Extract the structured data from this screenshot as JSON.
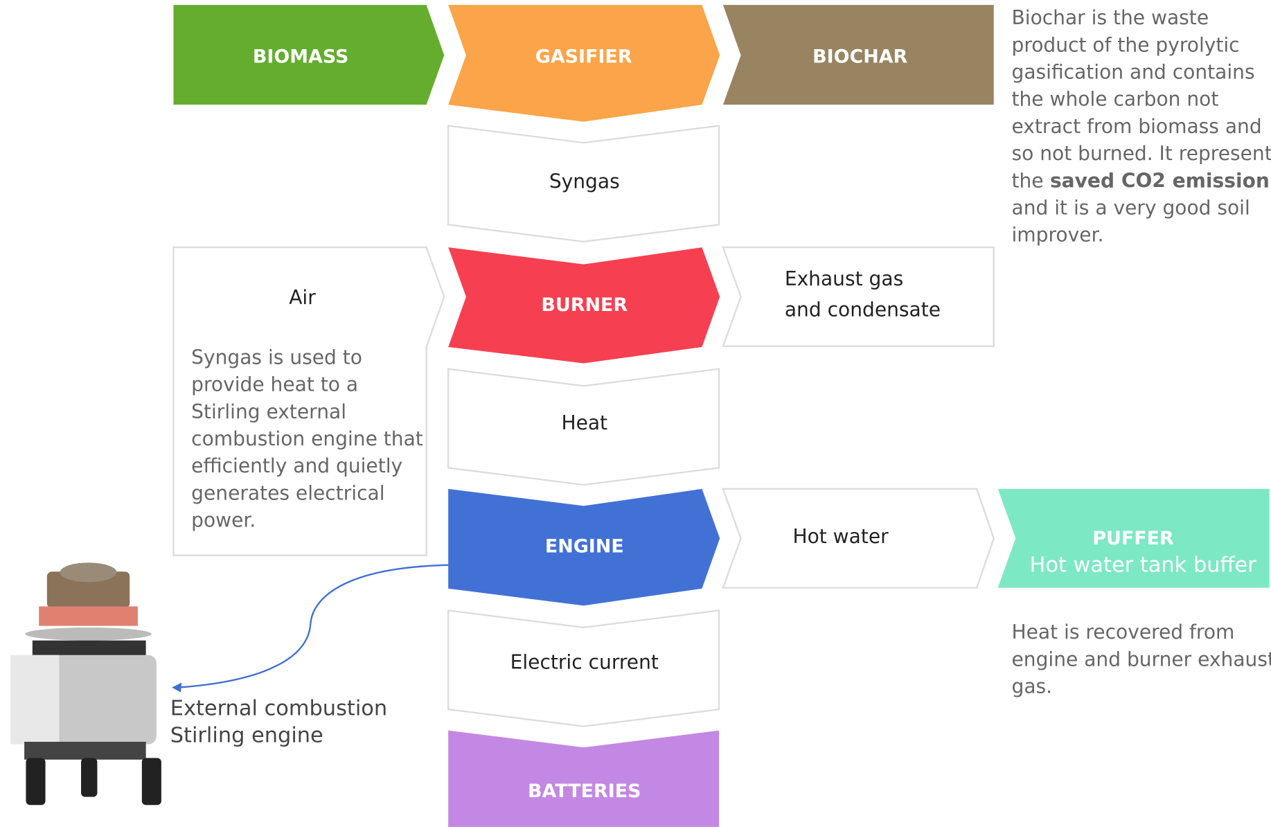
{
  "stages": {
    "biomass": "BIOMASS",
    "gasifier": "GASIFIER",
    "biochar": "BIOCHAR",
    "burner": "BURNER",
    "engine": "ENGINE",
    "batteries": "BATTERIES",
    "puffer": "PUFFER",
    "puffer_subtitle": "Hot water tank buffer"
  },
  "flows": {
    "syngas": "Syngas",
    "air": "Air",
    "exhaust": [
      "Exhaust gas",
      "and condensate"
    ],
    "heat": "Heat",
    "hot_water": "Hot water",
    "electric_current": "Electric current"
  },
  "notes": {
    "biochar": [
      "Biochar is the waste",
      "product of the pyrolytic",
      "gasification and contains",
      "the whole carbon not",
      "extract from biomass and",
      "so not burned. It represent"
    ],
    "biochar_bold_prefix": "the",
    "biochar_bold": "saved CO2 emission",
    "biochar_end": [
      "and it is a very good soil",
      "improver."
    ],
    "syngas_use": [
      "Syngas is used to",
      "provide heat to a",
      "Stirling external",
      "combustion engine that",
      "efficiently and quietly",
      "generates electrical",
      "power."
    ],
    "heat_recovery": [
      "Heat is recovered from",
      "engine and burner exhaust",
      "gas."
    ]
  },
  "engine_caption": [
    "External combustion",
    "Stirling engine"
  ]
}
